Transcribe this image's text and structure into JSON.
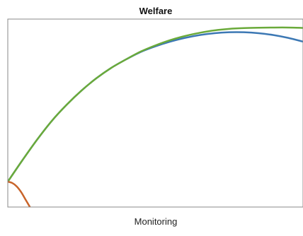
{
  "chart_data": {
    "type": "line",
    "title": "Welfare",
    "xlabel": "Monitoring",
    "ylabel": "",
    "xlim": [
      0,
      1
    ],
    "ylim": [
      0,
      1
    ],
    "grid": false,
    "legend": "none",
    "series": [
      {
        "color": "#3c78b4",
        "x": [
          0.0,
          0.05,
          0.1,
          0.15,
          0.2,
          0.25,
          0.3,
          0.35,
          0.4,
          0.45,
          0.5,
          0.55,
          0.6,
          0.65,
          0.7,
          0.75,
          0.8,
          0.85,
          0.9,
          0.95,
          1.0
        ],
        "y": [
          0.135,
          0.25,
          0.36,
          0.46,
          0.545,
          0.62,
          0.685,
          0.74,
          0.785,
          0.825,
          0.855,
          0.88,
          0.9,
          0.915,
          0.925,
          0.93,
          0.93,
          0.925,
          0.915,
          0.9,
          0.88
        ]
      },
      {
        "color": "#6aaa3a",
        "x": [
          0.0,
          0.05,
          0.1,
          0.15,
          0.2,
          0.25,
          0.3,
          0.35,
          0.4,
          0.45,
          0.5,
          0.55,
          0.6,
          0.65,
          0.7,
          0.75,
          0.8,
          0.85,
          0.9,
          0.95,
          1.0
        ],
        "y": [
          0.135,
          0.25,
          0.36,
          0.46,
          0.545,
          0.62,
          0.685,
          0.74,
          0.785,
          0.827,
          0.86,
          0.888,
          0.91,
          0.927,
          0.94,
          0.948,
          0.952,
          0.954,
          0.955,
          0.955,
          0.953
        ]
      },
      {
        "color": "#c8642a",
        "x": [
          0.0,
          0.015,
          0.03,
          0.045,
          0.06,
          0.075
        ],
        "y": [
          0.135,
          0.128,
          0.11,
          0.08,
          0.04,
          0.0
        ]
      }
    ]
  }
}
